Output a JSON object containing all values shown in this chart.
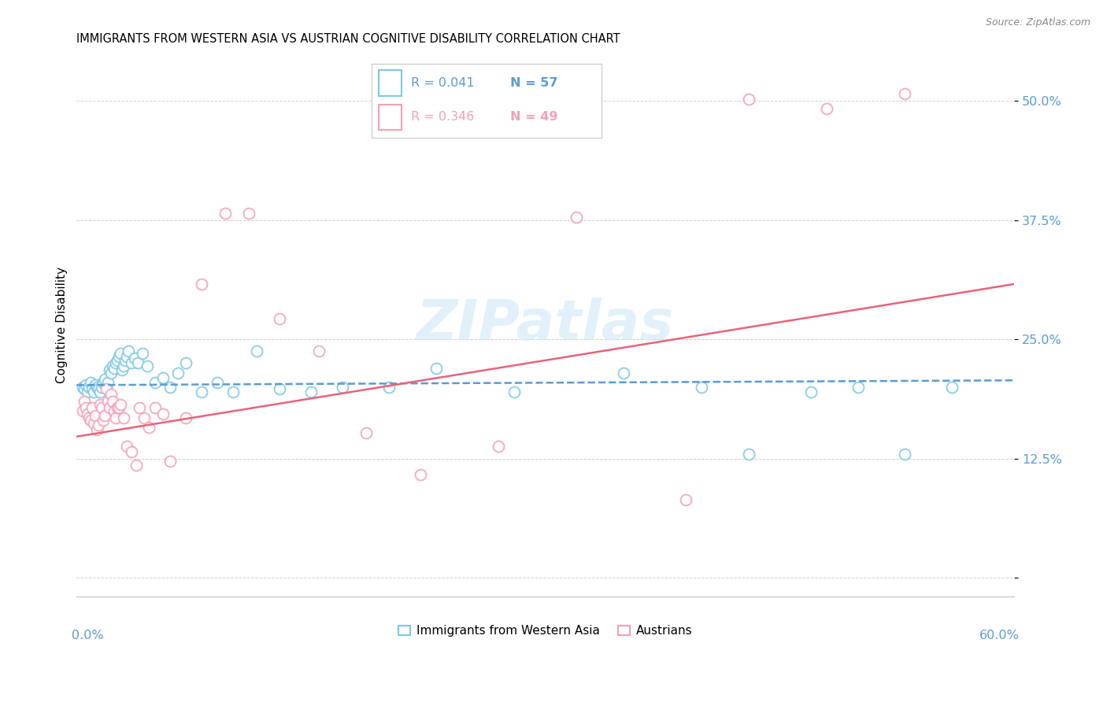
{
  "title": "IMMIGRANTS FROM WESTERN ASIA VS AUSTRIAN COGNITIVE DISABILITY CORRELATION CHART",
  "source": "Source: ZipAtlas.com",
  "ylabel": "Cognitive Disability",
  "color_blue": "#7ec8e3",
  "color_pink": "#f4a0b5",
  "color_blue_line": "#5b9bd5",
  "color_pink_line": "#e8637a",
  "watermark_text": "ZIPatlas",
  "title_fontsize": 10.5,
  "xlim": [
    0.0,
    0.6
  ],
  "ylim": [
    -0.02,
    0.55
  ],
  "ytick_vals": [
    0.0,
    0.125,
    0.25,
    0.375,
    0.5
  ],
  "ytick_labels": [
    "",
    "12.5%",
    "25.0%",
    "37.5%",
    "50.0%"
  ],
  "legend_r1": "R = 0.041",
  "legend_n1": "N = 57",
  "legend_r2": "R = 0.346",
  "legend_n2": "N = 49",
  "legend_label1": "Immigrants from Western Asia",
  "legend_label2": "Austrians",
  "blue_scatter_x": [
    0.004,
    0.005,
    0.006,
    0.007,
    0.008,
    0.009,
    0.01,
    0.011,
    0.012,
    0.013,
    0.014,
    0.015,
    0.016,
    0.017,
    0.018,
    0.019,
    0.02,
    0.021,
    0.022,
    0.023,
    0.024,
    0.025,
    0.026,
    0.027,
    0.028,
    0.029,
    0.03,
    0.031,
    0.032,
    0.033,
    0.035,
    0.037,
    0.039,
    0.042,
    0.045,
    0.05,
    0.055,
    0.06,
    0.065,
    0.07,
    0.08,
    0.09,
    0.1,
    0.115,
    0.13,
    0.15,
    0.17,
    0.2,
    0.23,
    0.28,
    0.35,
    0.4,
    0.43,
    0.47,
    0.5,
    0.53,
    0.56
  ],
  "blue_scatter_y": [
    0.2,
    0.198,
    0.202,
    0.195,
    0.2,
    0.205,
    0.198,
    0.195,
    0.202,
    0.2,
    0.198,
    0.195,
    0.2,
    0.205,
    0.208,
    0.2,
    0.205,
    0.218,
    0.215,
    0.222,
    0.22,
    0.225,
    0.228,
    0.232,
    0.235,
    0.218,
    0.222,
    0.228,
    0.232,
    0.238,
    0.225,
    0.23,
    0.225,
    0.235,
    0.222,
    0.205,
    0.21,
    0.2,
    0.215,
    0.225,
    0.195,
    0.205,
    0.195,
    0.238,
    0.198,
    0.195,
    0.2,
    0.2,
    0.22,
    0.195,
    0.215,
    0.2,
    0.13,
    0.195,
    0.2,
    0.13,
    0.2
  ],
  "pink_scatter_x": [
    0.004,
    0.005,
    0.006,
    0.007,
    0.008,
    0.009,
    0.01,
    0.011,
    0.012,
    0.013,
    0.014,
    0.015,
    0.016,
    0.017,
    0.018,
    0.019,
    0.02,
    0.021,
    0.022,
    0.023,
    0.024,
    0.025,
    0.026,
    0.027,
    0.028,
    0.03,
    0.032,
    0.035,
    0.038,
    0.04,
    0.043,
    0.046,
    0.05,
    0.055,
    0.06,
    0.07,
    0.08,
    0.095,
    0.11,
    0.13,
    0.155,
    0.185,
    0.22,
    0.27,
    0.32,
    0.39,
    0.43,
    0.48,
    0.53
  ],
  "pink_scatter_y": [
    0.175,
    0.185,
    0.178,
    0.172,
    0.168,
    0.165,
    0.178,
    0.162,
    0.17,
    0.155,
    0.16,
    0.182,
    0.178,
    0.165,
    0.17,
    0.198,
    0.185,
    0.178,
    0.192,
    0.185,
    0.175,
    0.168,
    0.178,
    0.178,
    0.182,
    0.168,
    0.138,
    0.132,
    0.118,
    0.178,
    0.168,
    0.158,
    0.178,
    0.172,
    0.122,
    0.168,
    0.308,
    0.382,
    0.382,
    0.272,
    0.238,
    0.152,
    0.108,
    0.138,
    0.378,
    0.082,
    0.502,
    0.492,
    0.508
  ],
  "blue_line_x": [
    0.0,
    0.6
  ],
  "blue_line_y": [
    0.202,
    0.207
  ],
  "pink_line_x": [
    0.0,
    0.6
  ],
  "pink_line_y": [
    0.148,
    0.308
  ]
}
